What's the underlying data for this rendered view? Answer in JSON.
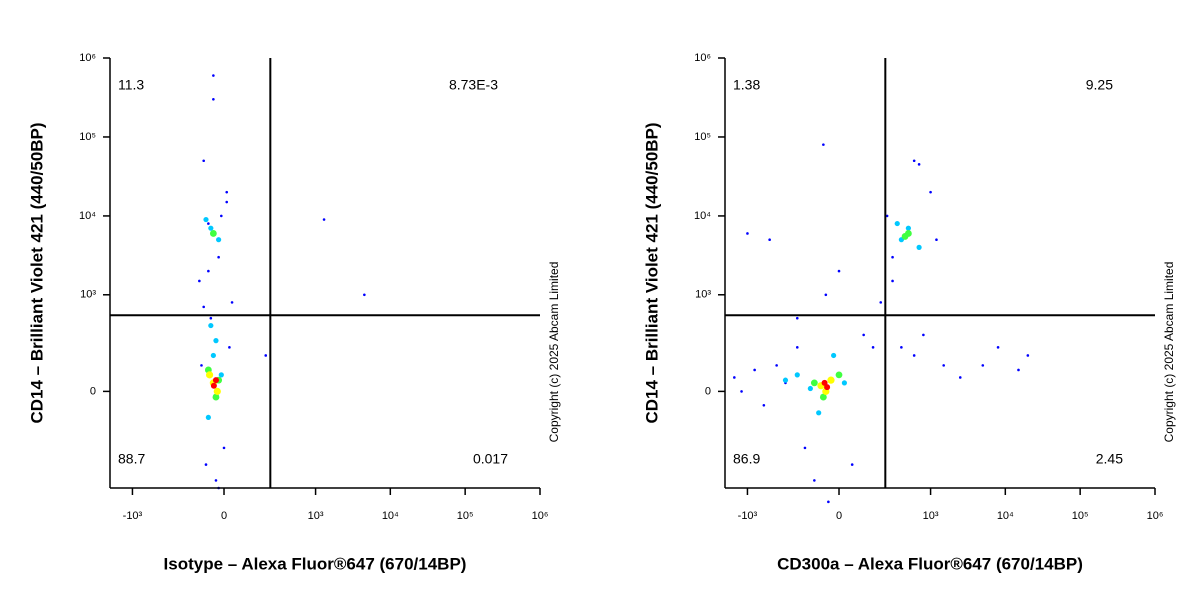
{
  "chart_data": [
    {
      "type": "scatter",
      "xscale": "biexponential",
      "yscale": "biexponential",
      "xlabel": "Isotype – Alexa Fluor®647 (670/14BP)",
      "ylabel": "CD14 – Brilliant Violet 421  (440/50BP)",
      "copyright": "Copyright (c) 2025 Abcam Limited",
      "xlim": [
        -2000,
        1000000
      ],
      "ylim": [
        -1000,
        1000000
      ],
      "xticks": [
        {
          "value": -1000,
          "label": "-10³"
        },
        0,
        {
          "value": 1000,
          "label": "10³"
        },
        {
          "value": 10000,
          "label": "10⁴"
        },
        {
          "value": 100000,
          "label": "10⁵"
        },
        {
          "value": 1000000,
          "label": "10⁶"
        }
      ],
      "yticks": [
        0,
        {
          "value": 1000,
          "label": "10³"
        },
        {
          "value": 10000,
          "label": "10⁴"
        },
        {
          "value": 100000,
          "label": "10⁵"
        },
        {
          "value": 1000000,
          "label": "10⁶"
        }
      ],
      "gate": {
        "x": 235,
        "y": 546
      },
      "quadrants": {
        "values": [
          11.3,
          0.00873,
          88.7,
          0.017
        ],
        "value_labels": [
          "11.3",
          "8.73E-3",
          "88.7",
          "0.017"
        ]
      },
      "series": [
        {
          "color": "#0000ff",
          "x": [
            -40,
            -80,
            10,
            -60,
            -20,
            -100,
            30,
            -50,
            0,
            -70,
            -30,
            -90,
            20,
            -10,
            1300,
            4500,
            200,
            -40,
            -60,
            -20,
            -80,
            10
          ],
          "y": [
            300000,
            50000,
            20000,
            8000,
            3000,
            1500,
            800,
            500,
            -300,
            -500,
            -800,
            100,
            200,
            10000,
            9000,
            1000,
            150,
            600000,
            2000,
            -1000,
            700,
            15000
          ]
        },
        {
          "color": "#00c8ff",
          "x": [
            -50,
            -20,
            -70,
            -40,
            -10,
            -60,
            -30,
            -50
          ],
          "y": [
            7000,
            5000,
            9000,
            150,
            60,
            -100,
            250,
            400
          ]
        },
        {
          "color": "#40ff40",
          "x": [
            -40,
            -20,
            -60,
            -30
          ],
          "y": [
            6000,
            40,
            80,
            -20
          ]
        },
        {
          "color": "#ffff00",
          "x": [
            -40,
            -25,
            -55
          ],
          "y": [
            30,
            0,
            60
          ]
        },
        {
          "color": "#ff0000",
          "x": [
            -38,
            -30
          ],
          "y": [
            20,
            40
          ]
        }
      ]
    },
    {
      "type": "scatter",
      "xscale": "biexponential",
      "yscale": "biexponential",
      "xlabel": "CD300a – Alexa Fluor®647 (670/14BP)",
      "ylabel": "CD14 – Brilliant Violet 421  (440/50BP)",
      "copyright": "Copyright (c) 2025 Abcam Limited",
      "xlim": [
        -2000,
        1000000
      ],
      "ylim": [
        -1000,
        1000000
      ],
      "xticks": [
        {
          "value": -1000,
          "label": "-10³"
        },
        0,
        {
          "value": 1000,
          "label": "10³"
        },
        {
          "value": 10000,
          "label": "10⁴"
        },
        {
          "value": 100000,
          "label": "10⁵"
        },
        {
          "value": 1000000,
          "label": "10⁶"
        }
      ],
      "yticks": [
        0,
        {
          "value": 1000,
          "label": "10³"
        },
        {
          "value": 10000,
          "label": "10⁴"
        },
        {
          "value": 100000,
          "label": "10⁵"
        },
        {
          "value": 1000000,
          "label": "10⁶"
        }
      ],
      "gate": {
        "x": 235,
        "y": 546
      },
      "quadrants": {
        "values": [
          1.38,
          9.25,
          86.9,
          2.45
        ]
      },
      "series": [
        {
          "color": "#0000ff",
          "x": [
            -1500,
            -1200,
            -800,
            -600,
            -400,
            -300,
            -200,
            -150,
            -100,
            -50,
            0,
            50,
            100,
            150,
            200,
            300,
            400,
            600,
            800,
            1500,
            2500,
            5000,
            8000,
            15000,
            20000,
            -1000,
            -60,
            -40,
            600,
            700,
            1000,
            300,
            -500,
            -200,
            250,
            1200
          ],
          "y": [
            50,
            0,
            80,
            -50,
            100,
            30,
            500,
            -300,
            -800,
            1000,
            2000,
            -500,
            300,
            200,
            800,
            1500,
            200,
            150,
            300,
            100,
            50,
            100,
            200,
            80,
            150,
            6000,
            80000,
            -1500,
            50000,
            45000,
            20000,
            3000,
            5000,
            200,
            10000,
            5000
          ]
        },
        {
          "color": "#00c8ff",
          "x": [
            -300,
            -200,
            -120,
            -80,
            -20,
            20,
            400,
            500,
            700,
            350
          ],
          "y": [
            40,
            60,
            10,
            -80,
            150,
            30,
            5000,
            7000,
            4000,
            8000
          ]
        },
        {
          "color": "#40ff40",
          "x": [
            -100,
            -60,
            0,
            500,
            450
          ],
          "y": [
            30,
            -20,
            60,
            6000,
            5500
          ]
        },
        {
          "color": "#ffff00",
          "x": [
            -70,
            -30,
            -50
          ],
          "y": [
            20,
            40,
            0
          ]
        },
        {
          "color": "#ff0000",
          "x": [
            -45,
            -55
          ],
          "y": [
            15,
            30
          ]
        }
      ]
    }
  ]
}
